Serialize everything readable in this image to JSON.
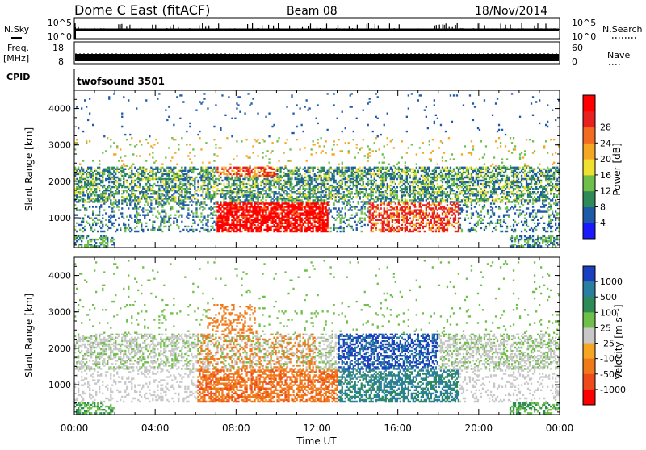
{
  "header": {
    "station": "Dome C East (fitACF)",
    "beam": "Beam 08",
    "date": "18/Nov/2014"
  },
  "strips": {
    "nsky_label": "N.Sky",
    "nsky_ticks": [
      "10^5",
      "10^0"
    ],
    "nsearch_label": "N.Search",
    "nsearch_ticks": [
      "10^5",
      "10^0"
    ],
    "freq_label_1": "Freq.",
    "freq_label_2": "[MHz]",
    "freq_ticks": [
      "18",
      "8"
    ],
    "nave_label": "Nave",
    "nave_ticks": [
      "60",
      "0"
    ],
    "cpid_label": "CPID",
    "cpid_value": "twofsound 3501"
  },
  "chart_data": [
    {
      "type": "heatmap",
      "title": "",
      "parameter": "Power",
      "ylabel": "Slant Range [km]",
      "xlabel": "",
      "xlim": [
        "00:00",
        "24:00"
      ],
      "ylim": [
        180,
        4500
      ],
      "x_tick_labels": [
        "00:00",
        "04:00",
        "08:00",
        "12:00",
        "16:00",
        "20:00",
        "00:00"
      ],
      "y_tick_labels": [
        "1000",
        "2000",
        "3000",
        "4000"
      ],
      "colorbar": {
        "label": "Power [dB]",
        "ticks": [
          "4",
          "8",
          "12",
          "16",
          "20",
          "24",
          "28"
        ],
        "colors": [
          "#1a1aff",
          "#1f5aa8",
          "#2e8b57",
          "#6fbf4a",
          "#f0e030",
          "#f5a623",
          "#f26b21",
          "#e82020",
          "#ff0000"
        ]
      }
    },
    {
      "type": "heatmap",
      "title": "",
      "parameter": "Velocity",
      "ylabel": "Slant Range [km]",
      "xlabel": "Time UT",
      "xlim": [
        "00:00",
        "24:00"
      ],
      "ylim": [
        180,
        4500
      ],
      "x_tick_labels": [
        "00:00",
        "04:00",
        "08:00",
        "12:00",
        "16:00",
        "20:00",
        "00:00"
      ],
      "y_tick_labels": [
        "1000",
        "2000",
        "3000",
        "4000"
      ],
      "colorbar": {
        "label": "Velocity [m s⁻¹]",
        "ticks": [
          "1000",
          "500",
          "100",
          "25",
          "-25",
          "-100",
          "-500",
          "-1000"
        ],
        "colors": [
          "#1a3fbf",
          "#2a7fa0",
          "#2e8b57",
          "#6fbf4a",
          "#c8c8c8",
          "#f5a623",
          "#f07a1a",
          "#ee4a1a",
          "#ff0000"
        ]
      }
    }
  ]
}
